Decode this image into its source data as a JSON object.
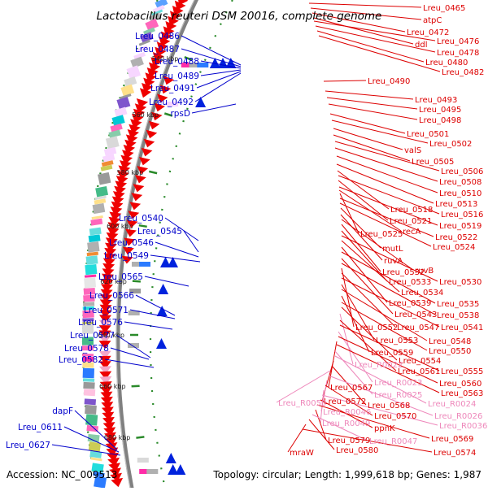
{
  "title": "Lactobacillus reuteri DSM 20016, complete genome",
  "footer": {
    "accession": "Accession: NC_009513",
    "summary": "Topology: circular; Length: 1,999,618 bp; Genes: 1,987"
  },
  "ticks": [
    {
      "label": "540 kbp"
    },
    {
      "label": "560 kbp"
    },
    {
      "label": "580 kbp"
    },
    {
      "label": "600 kbp"
    },
    {
      "label": "620 kbp"
    },
    {
      "label": "640 kbp"
    },
    {
      "label": "660 kbp"
    },
    {
      "label": "680 kbp"
    }
  ],
  "colors": {
    "forward_label": "#0000cc",
    "reverse_label": "#dd0000",
    "rna_label": "#ee88bb",
    "backbone": "#808080",
    "tick": "#2a8a2a",
    "reverse_feature": "#ee0000",
    "forward_feature": "#0022dd"
  },
  "left_labels": [
    {
      "text": "Lreu_0486"
    },
    {
      "text": "Lreu_0487"
    },
    {
      "text": "Lreu_0488"
    },
    {
      "text": "Lreu_0489"
    },
    {
      "text": "Lreu_0491"
    },
    {
      "text": "Lreu_0492"
    },
    {
      "text": "rpsD"
    },
    {
      "text": "Lreu_0540"
    },
    {
      "text": "Lreu_0545"
    },
    {
      "text": "Lreu_0546"
    },
    {
      "text": "Lreu_0549"
    },
    {
      "text": "Lreu_0565"
    },
    {
      "text": "Lreu_0566"
    },
    {
      "text": "Lreu_0571"
    },
    {
      "text": "Lreu_0576"
    },
    {
      "text": "Lreu_0577"
    },
    {
      "text": "Lreu_0578"
    },
    {
      "text": "Lreu_0582"
    },
    {
      "text": "dapF"
    },
    {
      "text": "Lreu_0611"
    },
    {
      "text": "Lreu_0627"
    }
  ],
  "right_labels": [
    {
      "text": "Lreu_0465",
      "kind": "gene"
    },
    {
      "text": "atpC",
      "kind": "gene"
    },
    {
      "text": "Lreu_0472",
      "kind": "gene"
    },
    {
      "text": "ddl",
      "kind": "gene"
    },
    {
      "text": "Lreu_0476",
      "kind": "gene"
    },
    {
      "text": "Lreu_0478",
      "kind": "gene"
    },
    {
      "text": "Lreu_0480",
      "kind": "gene"
    },
    {
      "text": "Lreu_0482",
      "kind": "gene"
    },
    {
      "text": "Lreu_0490",
      "kind": "gene"
    },
    {
      "text": "Lreu_0493",
      "kind": "gene"
    },
    {
      "text": "Lreu_0495",
      "kind": "gene"
    },
    {
      "text": "Lreu_0498",
      "kind": "gene"
    },
    {
      "text": "Lreu_0501",
      "kind": "gene"
    },
    {
      "text": "Lreu_0502",
      "kind": "gene"
    },
    {
      "text": "valS",
      "kind": "gene"
    },
    {
      "text": "Lreu_0505",
      "kind": "gene"
    },
    {
      "text": "Lreu_0506",
      "kind": "gene"
    },
    {
      "text": "Lreu_0508",
      "kind": "gene"
    },
    {
      "text": "Lreu_0510",
      "kind": "gene"
    },
    {
      "text": "Lreu_0513",
      "kind": "gene"
    },
    {
      "text": "Lreu_0518",
      "kind": "gene"
    },
    {
      "text": "Lreu_0516",
      "kind": "gene"
    },
    {
      "text": "Lreu_0521",
      "kind": "gene"
    },
    {
      "text": "Lreu_0519",
      "kind": "gene"
    },
    {
      "text": "recA",
      "kind": "gene"
    },
    {
      "text": "Lreu_0525",
      "kind": "gene"
    },
    {
      "text": "Lreu_0522",
      "kind": "gene"
    },
    {
      "text": "Lreu_0524",
      "kind": "gene"
    },
    {
      "text": "mutL",
      "kind": "gene"
    },
    {
      "text": "ruvA",
      "kind": "gene"
    },
    {
      "text": "ruvB",
      "kind": "gene"
    },
    {
      "text": "Lreu_0532",
      "kind": "gene"
    },
    {
      "text": "Lreu_0533",
      "kind": "gene"
    },
    {
      "text": "Lreu_0530",
      "kind": "gene"
    },
    {
      "text": "Lreu_0534",
      "kind": "gene"
    },
    {
      "text": "Lreu_0539",
      "kind": "gene"
    },
    {
      "text": "Lreu_0535",
      "kind": "gene"
    },
    {
      "text": "Lreu_0543",
      "kind": "gene"
    },
    {
      "text": "Lreu_0538",
      "kind": "gene"
    },
    {
      "text": "Lreu_0552",
      "kind": "gene"
    },
    {
      "text": "Lreu_0547",
      "kind": "gene"
    },
    {
      "text": "Lreu_0541",
      "kind": "gene"
    },
    {
      "text": "Lreu_0553",
      "kind": "gene"
    },
    {
      "text": "Lreu_0548",
      "kind": "gene"
    },
    {
      "text": "Lreu_0559",
      "kind": "gene"
    },
    {
      "text": "Lreu_0550",
      "kind": "gene"
    },
    {
      "text": "Lreu_0554",
      "kind": "gene"
    },
    {
      "text": "Lreu_R0022",
      "kind": "rna"
    },
    {
      "text": "Lreu_0561",
      "kind": "gene"
    },
    {
      "text": "Lreu_0555",
      "kind": "gene"
    },
    {
      "text": "Lreu_R0023",
      "kind": "rna"
    },
    {
      "text": "Lreu_0560",
      "kind": "gene"
    },
    {
      "text": "Lreu_0567",
      "kind": "gene"
    },
    {
      "text": "Lreu_0563",
      "kind": "gene"
    },
    {
      "text": "Lreu_R0025",
      "kind": "rna"
    },
    {
      "text": "Lreu_R0024",
      "kind": "rna"
    },
    {
      "text": "Lreu_0572",
      "kind": "gene"
    },
    {
      "text": "Lreu_0568",
      "kind": "gene"
    },
    {
      "text": "Lreu_R0050",
      "kind": "rna"
    },
    {
      "text": "Lreu_R0026",
      "kind": "rna"
    },
    {
      "text": "Lreu_R0046",
      "kind": "rna"
    },
    {
      "text": "Lreu_0570",
      "kind": "gene"
    },
    {
      "text": "Lreu_R0049",
      "kind": "rna"
    },
    {
      "text": "Lreu_R0036",
      "kind": "rna"
    },
    {
      "text": "ppnK",
      "kind": "gene"
    },
    {
      "text": "Lreu_0569",
      "kind": "gene"
    },
    {
      "text": "Lreu_0579",
      "kind": "gene"
    },
    {
      "text": "Lreu_R0047",
      "kind": "rna"
    },
    {
      "text": "Lreu_0580",
      "kind": "gene"
    },
    {
      "text": "mraW",
      "kind": "gene"
    },
    {
      "text": "Lreu_0574",
      "kind": "gene"
    }
  ]
}
